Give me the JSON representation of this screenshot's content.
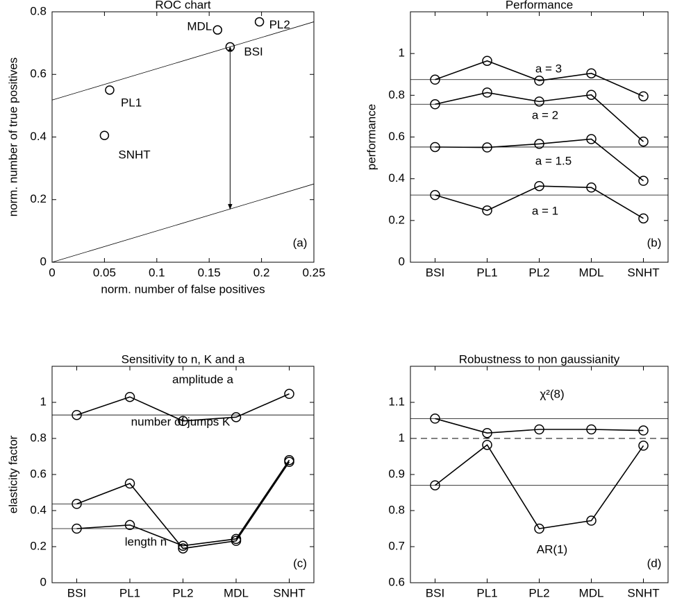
{
  "chart_data": [
    {
      "type": "scatter",
      "title": "ROC chart",
      "xlabel": "norm. number of false positives",
      "ylabel": "norm. number of true positives",
      "corner_label": "(a)",
      "x": [
        0.05,
        0.055,
        0.158,
        0.198,
        0.17
      ],
      "values": [
        0.405,
        0.55,
        0.742,
        0.768,
        0.688
      ],
      "point_labels": [
        "SNHT",
        "PL1",
        "MDL",
        "PL2",
        "BSI"
      ],
      "color": "#000000",
      "lines": [
        {
          "x": [
            0,
            0.25
          ],
          "y": [
            0.518,
            0.768
          ]
        },
        {
          "x": [
            0,
            0.25
          ],
          "y": [
            0,
            0.25
          ]
        }
      ],
      "arrow": {
        "x": 0.17,
        "y": [
          0.17,
          0.688
        ]
      },
      "xlim": [
        0,
        0.25
      ],
      "xticks": [
        0,
        0.05,
        0.1,
        0.15,
        0.2,
        0.25
      ],
      "ylim": [
        0,
        0.8
      ],
      "yticks": [
        0,
        0.2,
        0.4,
        0.6,
        0.8
      ]
    },
    {
      "type": "line",
      "title": "Performance",
      "ylabel": "performance",
      "corner_label": "(b)",
      "categories": [
        "BSI",
        "PL1",
        "PL2",
        "MDL",
        "SNHT"
      ],
      "series": [
        {
          "name": "a = 3",
          "color": "#000000",
          "values": [
            0.875,
            0.965,
            0.87,
            0.905,
            0.795
          ]
        },
        {
          "name": "a = 2",
          "color": "#000000",
          "values": [
            0.757,
            0.813,
            0.77,
            0.802,
            0.578
          ]
        },
        {
          "name": "a = 1.5",
          "color": "#000000",
          "values": [
            0.552,
            0.55,
            0.567,
            0.59,
            0.39
          ]
        },
        {
          "name": "a = 1",
          "color": "#000000",
          "values": [
            0.322,
            0.248,
            0.365,
            0.358,
            0.21
          ]
        }
      ],
      "ylim": [
        0,
        1.2
      ],
      "yticks": [
        0,
        0.2,
        0.4,
        0.6,
        0.8,
        1
      ]
    },
    {
      "type": "line",
      "title": "Sensitivity to n, K and a",
      "ylabel": "elasticity factor",
      "corner_label": "(c)",
      "categories": [
        "BSI",
        "PL1",
        "PL2",
        "MDL",
        "SNHT"
      ],
      "series": [
        {
          "name": "amplitude a",
          "color": "#000000",
          "values": [
            0.93,
            1.03,
            0.897,
            0.918,
            1.047
          ]
        },
        {
          "name": "number of jumps K",
          "color": "#000000",
          "values": [
            0.437,
            0.55,
            0.19,
            0.232,
            0.67
          ]
        },
        {
          "name": "length n",
          "color": "#000000",
          "values": [
            0.3,
            0.32,
            0.205,
            0.243,
            0.68
          ]
        }
      ],
      "ylim": [
        0,
        1.2
      ],
      "yticks": [
        0,
        0.2,
        0.4,
        0.6,
        0.8,
        1
      ]
    },
    {
      "type": "line",
      "title": "Robustness to non gaussianity",
      "corner_label": "(d)",
      "categories": [
        "BSI",
        "PL1",
        "PL2",
        "MDL",
        "SNHT"
      ],
      "series": [
        {
          "name": "χ²(8)",
          "color": "#000000",
          "values": [
            1.055,
            1.015,
            1.025,
            1.025,
            1.022
          ]
        },
        {
          "name": "AR(1)",
          "color": "#000000",
          "values": [
            0.87,
            0.982,
            0.75,
            0.772,
            0.98
          ]
        }
      ],
      "hline": 1,
      "ylim": [
        0.6,
        1.2
      ],
      "yticks": [
        0.6,
        0.7,
        0.8,
        0.9,
        1,
        1.1
      ]
    }
  ]
}
